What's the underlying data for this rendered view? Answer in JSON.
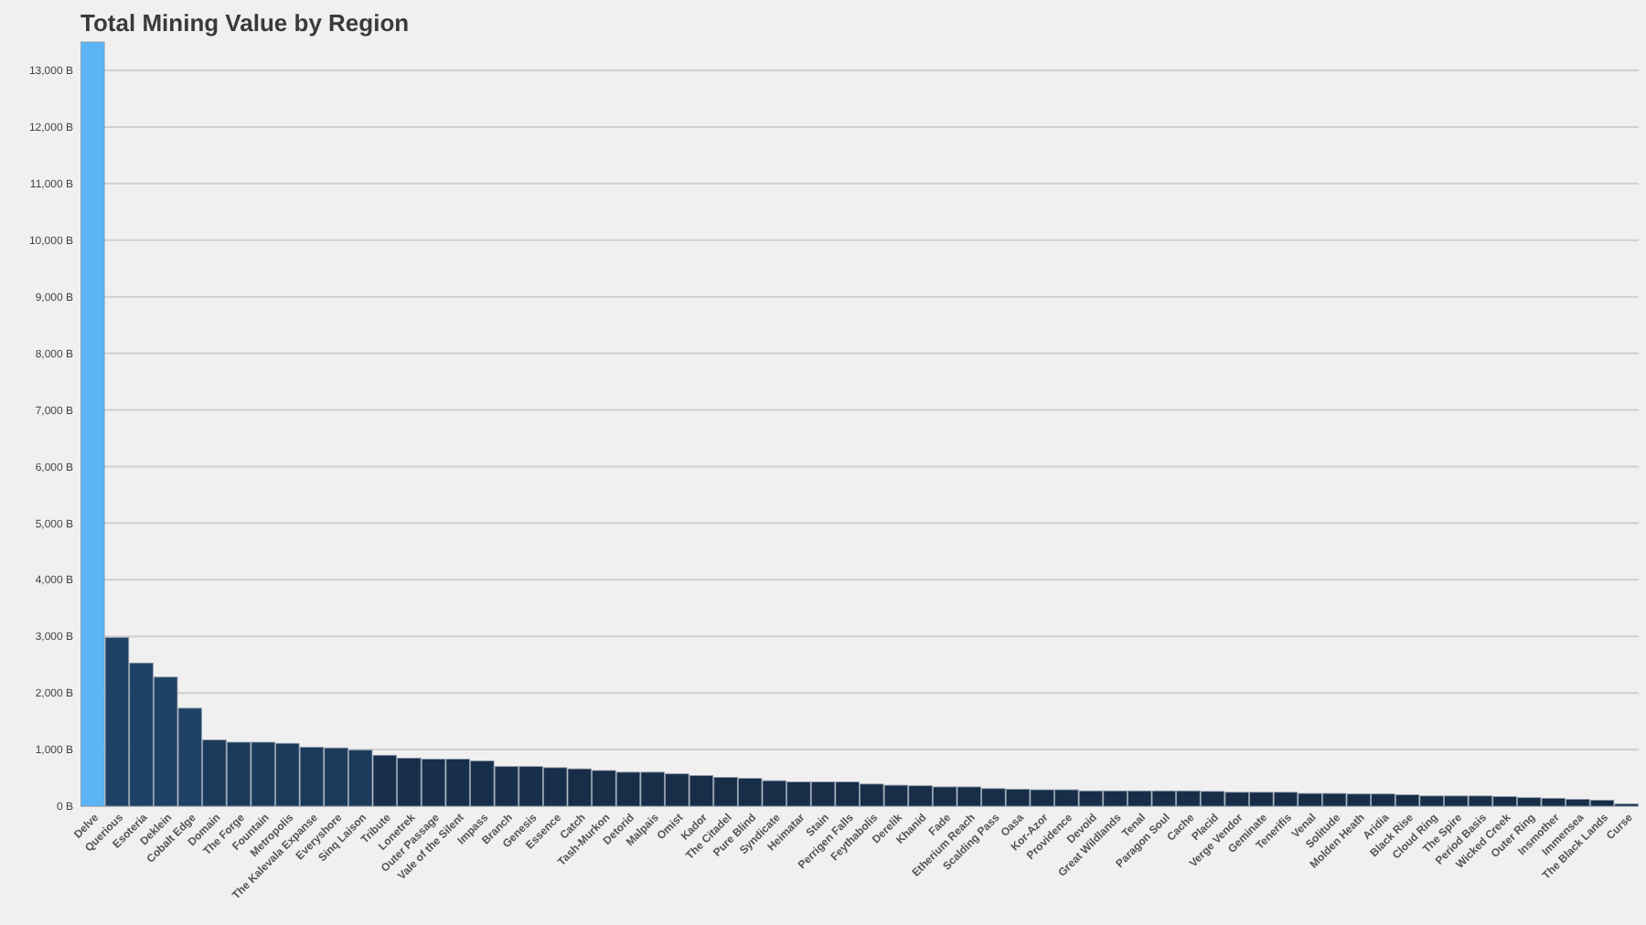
{
  "chart_data": {
    "type": "bar",
    "title": "Total Mining Value by Region",
    "categories": [
      "Delve",
      "Querious",
      "Esoteria",
      "Deklein",
      "Cobalt Edge",
      "Domain",
      "The Forge",
      "Fountain",
      "Metropolis",
      "The Kalevala Expanse",
      "Everyshore",
      "Sinq Laison",
      "Tribute",
      "Lonetrek",
      "Outer Passage",
      "Vale of the Silent",
      "Impass",
      "Branch",
      "Genesis",
      "Essence",
      "Catch",
      "Tash-Murkon",
      "Detorid",
      "Malpais",
      "Omist",
      "Kador",
      "The Citadel",
      "Pure Blind",
      "Syndicate",
      "Heimatar",
      "Stain",
      "Perrigen Falls",
      "Feythabolis",
      "Derelik",
      "Khanid",
      "Fade",
      "Etherium Reach",
      "Scalding Pass",
      "Oasa",
      "Kor-Azor",
      "Providence",
      "Devoid",
      "Great Wildlands",
      "Tenal",
      "Paragon Soul",
      "Cache",
      "Placid",
      "Verge Vendor",
      "Geminate",
      "Tenerifis",
      "Venal",
      "Solitude",
      "Molden Heath",
      "Aridia",
      "Black Rise",
      "Cloud Ring",
      "The Spire",
      "Period Basis",
      "Wicked Creek",
      "Outer Ring",
      "Insmother",
      "Immensea",
      "The Black Lands",
      "Curse"
    ],
    "values": [
      13500,
      2980,
      2530,
      2280,
      1730,
      1170,
      1130,
      1130,
      1110,
      1040,
      1030,
      990,
      900,
      850,
      830,
      830,
      800,
      700,
      700,
      680,
      660,
      630,
      600,
      600,
      570,
      540,
      510,
      490,
      450,
      430,
      430,
      430,
      390,
      370,
      360,
      340,
      340,
      310,
      300,
      290,
      290,
      270,
      270,
      270,
      270,
      270,
      260,
      245,
      245,
      245,
      225,
      225,
      215,
      215,
      200,
      180,
      180,
      180,
      170,
      150,
      140,
      120,
      105,
      40
    ],
    "colors": [
      "#5ab4f5",
      "#1f4166",
      "#1f4166",
      "#1f4166",
      "#1f4166",
      "#1b3a5c",
      "#1b3a5c",
      "#1b3a5c",
      "#1b3a5c",
      "#1b3a5c",
      "#1b3a5c",
      "#1b3a5c",
      "#182f4c",
      "#182f4c",
      "#182f4c",
      "#182f4c",
      "#182f4c",
      "#182f4c",
      "#182f4c",
      "#182f4c",
      "#172d48",
      "#172d48",
      "#172d48",
      "#172d48",
      "#172d48",
      "#172d48",
      "#172d48",
      "#172d48",
      "#172d48",
      "#172d48",
      "#172d48",
      "#172d48",
      "#172d48",
      "#172d48",
      "#172d48",
      "#172d48",
      "#172d48",
      "#172d48",
      "#172d48",
      "#172d48",
      "#172d48",
      "#172d48",
      "#172d48",
      "#172d48",
      "#172d48",
      "#172d48",
      "#172d48",
      "#172d48",
      "#172d48",
      "#172d48",
      "#172d48",
      "#172d48",
      "#172d48",
      "#172d48",
      "#172d48",
      "#172d48",
      "#172d48",
      "#172d48",
      "#172d48",
      "#172d48",
      "#172d48",
      "#172d48",
      "#172d48",
      "#172d48"
    ],
    "ylim": [
      0,
      13500
    ],
    "yticks": [
      {
        "value": 0,
        "label": "0 B"
      },
      {
        "value": 1000,
        "label": "1,000 B"
      },
      {
        "value": 2000,
        "label": "2,000 B"
      },
      {
        "value": 3000,
        "label": "3,000 B"
      },
      {
        "value": 4000,
        "label": "4,000 B"
      },
      {
        "value": 5000,
        "label": "5,000 B"
      },
      {
        "value": 6000,
        "label": "6,000 B"
      },
      {
        "value": 7000,
        "label": "7,000 B"
      },
      {
        "value": 8000,
        "label": "8,000 B"
      },
      {
        "value": 9000,
        "label": "9,000 B"
      },
      {
        "value": 10000,
        "label": "10,000 B"
      },
      {
        "value": 11000,
        "label": "11,000 B"
      },
      {
        "value": 12000,
        "label": "12,000 B"
      },
      {
        "value": 13000,
        "label": "13,000 B"
      }
    ],
    "grid": "y"
  }
}
